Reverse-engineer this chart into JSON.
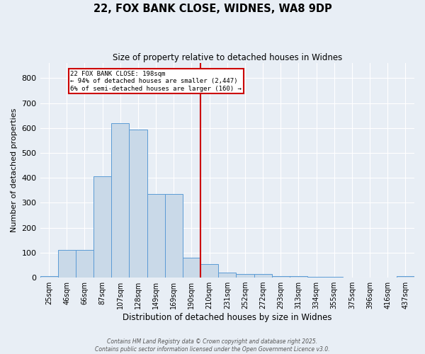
{
  "title": "22, FOX BANK CLOSE, WIDNES, WA8 9DP",
  "subtitle": "Size of property relative to detached houses in Widnes",
  "xlabel": "Distribution of detached houses by size in Widnes",
  "ylabel": "Number of detached properties",
  "footer_line1": "Contains HM Land Registry data © Crown copyright and database right 2025.",
  "footer_line2": "Contains public sector information licensed under the Open Government Licence v3.0.",
  "bin_labels": [
    "25sqm",
    "46sqm",
    "66sqm",
    "87sqm",
    "107sqm",
    "128sqm",
    "149sqm",
    "169sqm",
    "190sqm",
    "210sqm",
    "231sqm",
    "252sqm",
    "272sqm",
    "293sqm",
    "313sqm",
    "334sqm",
    "355sqm",
    "375sqm",
    "396sqm",
    "416sqm",
    "437sqm"
  ],
  "bar_heights": [
    5,
    110,
    110,
    405,
    620,
    595,
    335,
    335,
    80,
    55,
    20,
    15,
    15,
    5,
    5,
    3,
    3,
    0,
    0,
    0,
    5
  ],
  "vline_pos": 8.5,
  "annotation_title": "22 FOX BANK CLOSE: 198sqm",
  "annotation_line2": "← 94% of detached houses are smaller (2,447)",
  "annotation_line3": "6% of semi-detached houses are larger (160) →",
  "bar_color": "#c9d9e8",
  "bar_edge_color": "#5b9bd5",
  "vline_color": "#cc0000",
  "annotation_box_edgecolor": "#cc0000",
  "bg_color": "#e8eef5",
  "grid_color": "#ffffff",
  "ylim": [
    0,
    860
  ],
  "yticks": [
    0,
    100,
    200,
    300,
    400,
    500,
    600,
    700,
    800
  ]
}
